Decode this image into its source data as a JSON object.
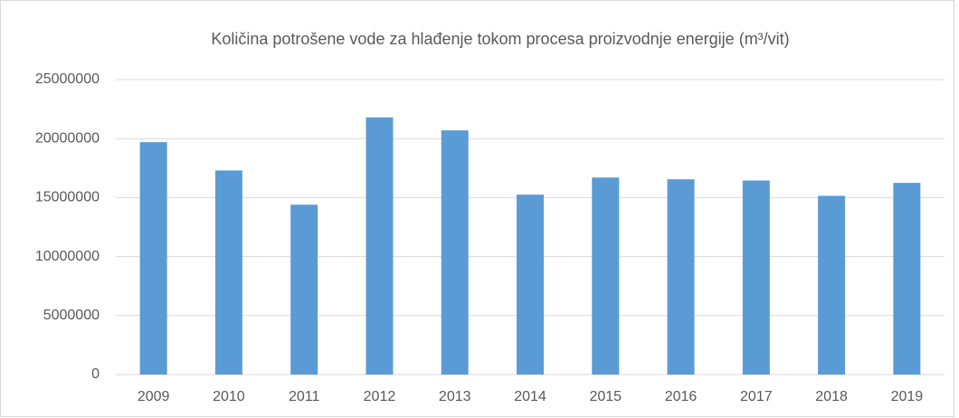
{
  "chart_data": {
    "type": "bar",
    "title": "Količina potrošene vode za hlađenje tokom procesa proizvodnje energije (m³/vit)",
    "categories": [
      "2009",
      "2010",
      "2011",
      "2012",
      "2013",
      "2014",
      "2015",
      "2016",
      "2017",
      "2018",
      "2019"
    ],
    "values": [
      19700000,
      17300000,
      14400000,
      21800000,
      20700000,
      15250000,
      16700000,
      16550000,
      16450000,
      15150000,
      16250000
    ],
    "color": "#5b9bd5",
    "ylim": [
      0,
      25000000
    ],
    "yticks": [
      0,
      5000000,
      10000000,
      15000000,
      20000000,
      25000000
    ],
    "grid": true
  }
}
